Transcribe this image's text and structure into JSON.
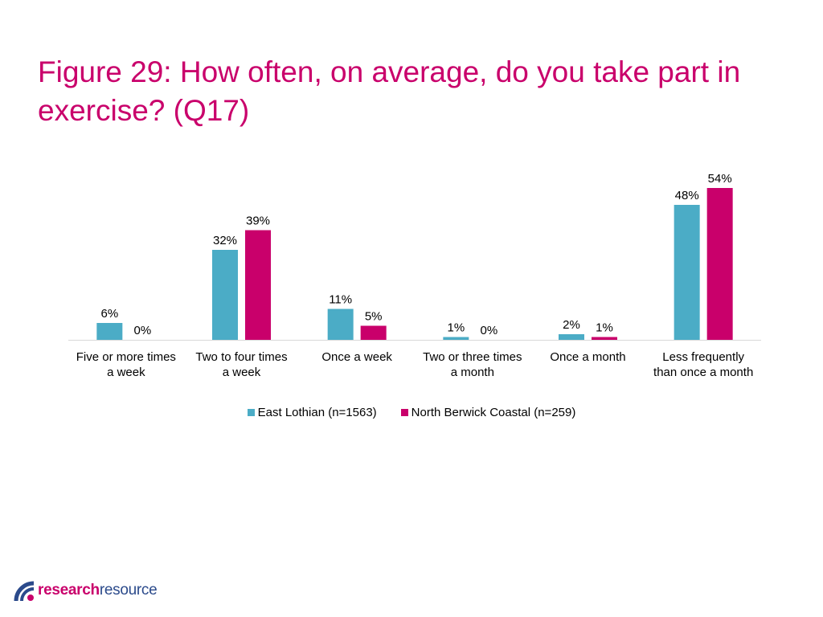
{
  "title": "Figure 29: How often, on average, do you take part in exercise? (Q17)",
  "chart_data": {
    "type": "bar",
    "title": "Figure 29: How often, on average, do you take part in exercise? (Q17)",
    "categories": [
      [
        "Five or more times",
        "a week"
      ],
      [
        "Two to four times",
        "a week"
      ],
      [
        "Once a week"
      ],
      [
        "Two or three times",
        "a month"
      ],
      [
        "Once a month"
      ],
      [
        "Less frequently",
        "than once a month"
      ]
    ],
    "series": [
      {
        "name": "East Lothian (n=1563)",
        "color": "#4bacc6",
        "values": [
          6,
          32,
          11,
          1,
          2,
          48
        ],
        "labels": [
          "6%",
          "32%",
          "11%",
          "1%",
          "2%",
          "48%"
        ]
      },
      {
        "name": "North Berwick Coastal (n=259)",
        "color": "#c9006b",
        "values": [
          0,
          39,
          5,
          0,
          1,
          54
        ],
        "labels": [
          "0%",
          "39%",
          "5%",
          "0%",
          "1%",
          "54%"
        ]
      }
    ],
    "ylim": [
      0,
      60
    ],
    "grid": false,
    "legend": "bottom"
  },
  "logo": {
    "bold": "research",
    "light": "resource",
    "mark_colors": [
      "#2b4a8b",
      "#c9006b"
    ]
  }
}
